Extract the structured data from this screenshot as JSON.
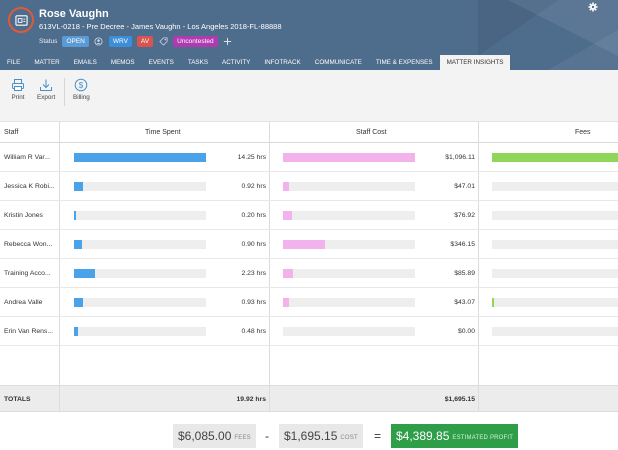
{
  "header": {
    "client_name": "Rose Vaughn",
    "matter_description": "613VL-0218 - Pre Decree - James Vaughn - Los Angeles 2018-FL-88888",
    "status_label": "Status",
    "status_value": "OPEN",
    "badges": [
      "WRV",
      "AV"
    ],
    "tag": "Uncontested",
    "icons": [
      "case-folder-icon",
      "person-icon",
      "tag-icon",
      "plus-icon",
      "gear-icon"
    ]
  },
  "tabs": [
    {
      "label": "FILE"
    },
    {
      "label": "MATTER"
    },
    {
      "label": "EMAILS"
    },
    {
      "label": "MEMOS"
    },
    {
      "label": "EVENTS"
    },
    {
      "label": "TASKS"
    },
    {
      "label": "ACTIVITY"
    },
    {
      "label": "INFOTRACK"
    },
    {
      "label": "COMMUNICATE"
    },
    {
      "label": "TIME & EXPENSES"
    },
    {
      "label": "MATTER INSIGHTS",
      "active": true
    }
  ],
  "toolbar": {
    "print_label": "Print",
    "export_label": "Export",
    "billing_label": "Billing"
  },
  "table": {
    "columns": {
      "staff": "Staff",
      "time": "Time Spent",
      "cost": "Staff Cost",
      "fees": "Fees"
    },
    "rows": [
      {
        "name": "William R Var...",
        "hours": "14.25 hrs",
        "hours_value": 14.25,
        "cost": "$1,096.11",
        "cost_value": 1096.11
      },
      {
        "name": "Jessica K Robi...",
        "hours": "0.92 hrs",
        "hours_value": 0.92,
        "cost": "$47.01",
        "cost_value": 47.01
      },
      {
        "name": "Kristin Jones",
        "hours": "0.20 hrs",
        "hours_value": 0.2,
        "cost": "$76.92",
        "cost_value": 76.92
      },
      {
        "name": "Rebecca Won...",
        "hours": "0.90 hrs",
        "hours_value": 0.9,
        "cost": "$346.15",
        "cost_value": 346.15
      },
      {
        "name": "Training Acco...",
        "hours": "2.23 hrs",
        "hours_value": 2.23,
        "cost": "$85.89",
        "cost_value": 85.89
      },
      {
        "name": "Andrea Valle",
        "hours": "0.93 hrs",
        "hours_value": 0.93,
        "cost": "$43.07",
        "cost_value": 43.07
      },
      {
        "name": "Erin Van Rens...",
        "hours": "0.48 hrs",
        "hours_value": 0.48,
        "cost": "$0.00",
        "cost_value": 0
      }
    ],
    "fees_fraction": [
      1.0,
      0,
      0,
      0,
      0,
      0.01,
      0
    ],
    "totals_label": "TOTALS",
    "total_hours": "19.92 hrs",
    "total_cost": "$1,695.15"
  },
  "summary": {
    "fees_amount": "$6,085.00",
    "fees_label": "FEES",
    "minus": "-",
    "cost_amount": "$1,695.15",
    "cost_label": "COST",
    "equals": "=",
    "profit_amount": "$4,389.85",
    "profit_label": "ESTIMATED PROFIT"
  },
  "colors": {
    "header_bg": "#4e6c8c",
    "time_bar": "#4aa3e8",
    "cost_bar": "#f2b3ec",
    "fees_bar": "#8fd65a",
    "profit_bg": "#2e9e49",
    "badge_av": "#d9534f",
    "badge_uncontested": "#b03bb0"
  }
}
